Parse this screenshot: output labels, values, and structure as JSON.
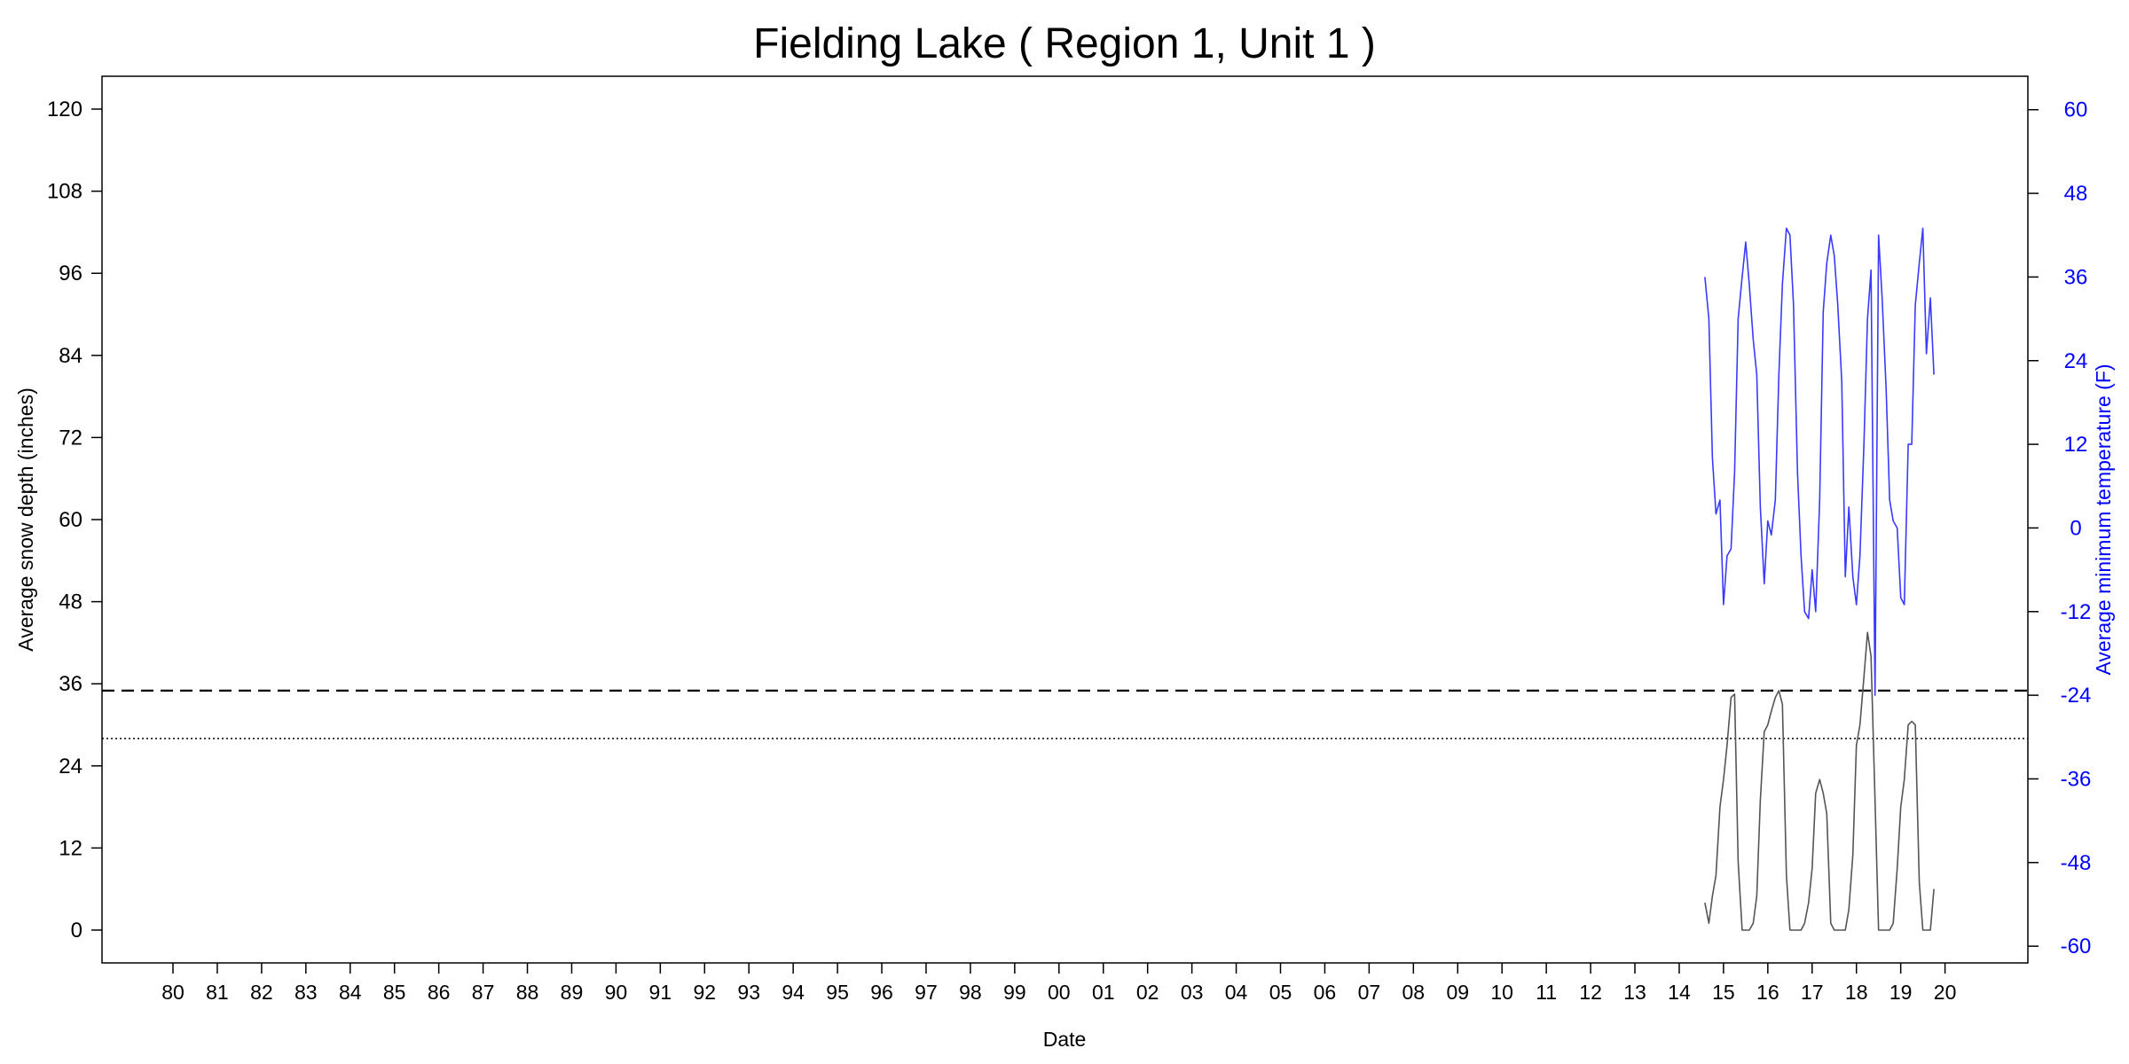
{
  "chart_data": {
    "type": "line",
    "title": "Fielding Lake ( Region 1, Unit 1 )",
    "xlabel": "Date",
    "ylabel_left": "Average snow depth (inches)",
    "ylabel_right": "Average minimum temperature (F)",
    "x_ticks": [
      "80",
      "81",
      "82",
      "83",
      "84",
      "85",
      "86",
      "87",
      "88",
      "89",
      "90",
      "91",
      "92",
      "93",
      "94",
      "95",
      "96",
      "97",
      "98",
      "99",
      "00",
      "01",
      "02",
      "03",
      "04",
      "05",
      "06",
      "07",
      "08",
      "09",
      "10",
      "11",
      "12",
      "13",
      "14",
      "15",
      "16",
      "17",
      "18",
      "19",
      "20"
    ],
    "ylim_left": [
      -4.8,
      124.8
    ],
    "yticks_left": [
      0,
      12,
      24,
      36,
      48,
      60,
      72,
      84,
      96,
      108,
      120
    ],
    "ylim_right": [
      -62.4,
      64.8
    ],
    "yticks_right": [
      -60,
      -48,
      -36,
      -24,
      -12,
      0,
      12,
      24,
      36,
      48,
      60
    ],
    "reference_lines": [
      {
        "style": "dashed",
        "y": 35
      },
      {
        "style": "dotted",
        "y": 28
      }
    ],
    "colors": {
      "snow": "#555555",
      "temperature": "#3a3aff",
      "right_axis": "#0000ff"
    },
    "series": [
      {
        "axis": "left",
        "color": "#555555",
        "x": [
          2014.58,
          2014.67,
          2014.75,
          2014.83,
          2014.92,
          2015.0,
          2015.08,
          2015.17,
          2015.25,
          2015.33,
          2015.42,
          2015.5,
          2015.58,
          2015.67,
          2015.75,
          2015.83,
          2015.92,
          2016.0,
          2016.08,
          2016.17,
          2016.25,
          2016.33,
          2016.42,
          2016.5,
          2016.58,
          2016.67,
          2016.75,
          2016.83,
          2016.92,
          2017.0,
          2017.08,
          2017.17,
          2017.25,
          2017.33,
          2017.42,
          2017.5,
          2017.58,
          2017.67,
          2017.75,
          2017.83,
          2017.92,
          2018.0,
          2018.08,
          2018.17,
          2018.25,
          2018.33,
          2018.42,
          2018.5,
          2018.58,
          2018.67,
          2018.75,
          2018.83,
          2018.92,
          2019.0,
          2019.08,
          2019.17,
          2019.25,
          2019.33,
          2019.42,
          2019.5,
          2019.58,
          2019.67,
          2019.75
        ],
        "values": [
          4,
          1,
          5,
          8,
          18,
          22,
          27,
          34,
          34.5,
          10,
          0,
          0,
          0,
          1,
          5,
          19,
          29,
          30,
          32,
          34,
          35,
          33,
          8,
          0,
          0,
          0,
          0,
          1,
          4,
          9,
          20,
          22,
          20,
          17,
          1,
          0,
          0,
          0,
          0,
          3,
          11,
          27,
          30,
          37,
          43.5,
          40,
          19,
          0,
          0,
          0,
          0,
          1,
          9,
          18,
          22,
          30,
          30.5,
          30,
          7,
          0,
          0,
          0,
          6
        ]
      },
      {
        "axis": "right",
        "color": "#3a3aff",
        "x": [
          2014.58,
          2014.67,
          2014.75,
          2014.83,
          2014.92,
          2015.0,
          2015.08,
          2015.17,
          2015.25,
          2015.33,
          2015.42,
          2015.5,
          2015.58,
          2015.67,
          2015.75,
          2015.83,
          2015.92,
          2016.0,
          2016.08,
          2016.17,
          2016.25,
          2016.33,
          2016.42,
          2016.5,
          2016.58,
          2016.67,
          2016.75,
          2016.83,
          2016.92,
          2017.0,
          2017.08,
          2017.17,
          2017.25,
          2017.33,
          2017.42,
          2017.5,
          2017.58,
          2017.67,
          2017.75,
          2017.83,
          2017.92,
          2018.0,
          2018.08,
          2018.17,
          2018.25,
          2018.33,
          2018.42,
          2018.5,
          2018.58,
          2018.67,
          2018.75,
          2018.83,
          2018.92,
          2019.0,
          2019.08,
          2019.17,
          2019.25,
          2019.33,
          2019.42,
          2019.5,
          2019.58,
          2019.67,
          2019.75
        ],
        "values": [
          36,
          30,
          10,
          2,
          4,
          -11,
          -4,
          -3,
          8,
          30,
          36,
          41,
          35,
          27,
          22,
          3,
          -8,
          1,
          -1,
          4,
          22,
          35,
          43,
          42,
          32,
          8,
          -4,
          -12,
          -13,
          -6,
          -12,
          4,
          31,
          38,
          42,
          39,
          32,
          21,
          -7,
          3,
          -7,
          -11,
          -4,
          12,
          30,
          37,
          -24,
          42,
          33,
          20,
          4,
          1,
          0,
          -10,
          -11,
          12,
          12,
          32,
          38,
          43,
          25,
          33,
          22
        ]
      }
    ]
  }
}
